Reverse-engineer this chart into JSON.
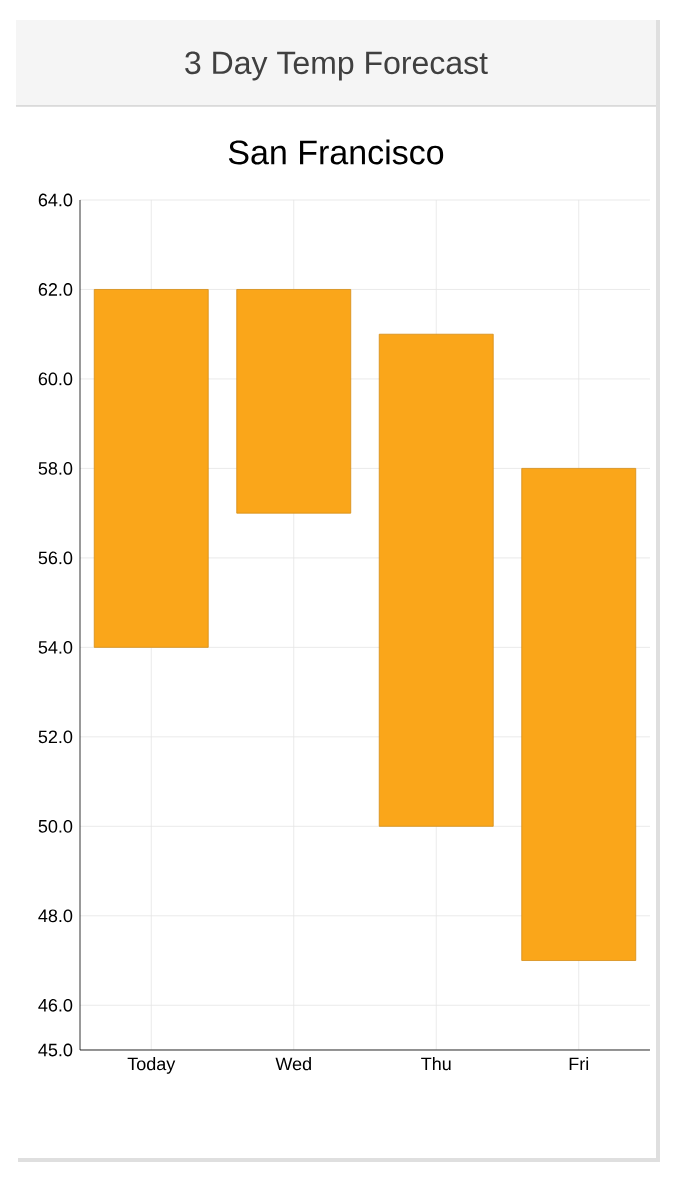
{
  "chart_data": {
    "type": "bar",
    "title": "3 Day Temp Forecast",
    "subtitle": "San Francisco",
    "categories": [
      "Today",
      "Wed",
      "Thu",
      "Fri"
    ],
    "base": [
      54,
      57,
      50,
      47
    ],
    "values": [
      8,
      5,
      11,
      11
    ],
    "color": "#faa61a",
    "ylim": [
      45,
      64
    ],
    "yticks": [
      {
        "value": 45,
        "label": "45.0"
      },
      {
        "value": 46,
        "label": "46.0"
      },
      {
        "value": 48,
        "label": "48.0"
      },
      {
        "value": 50,
        "label": "50.0"
      },
      {
        "value": 52,
        "label": "52.0"
      },
      {
        "value": 54,
        "label": "54.0"
      },
      {
        "value": 56,
        "label": "56.0"
      },
      {
        "value": 58,
        "label": "58.0"
      },
      {
        "value": 60,
        "label": "60.0"
      },
      {
        "value": 62,
        "label": "62.0"
      },
      {
        "value": 64,
        "label": "64.0"
      }
    ],
    "grid": true
  }
}
